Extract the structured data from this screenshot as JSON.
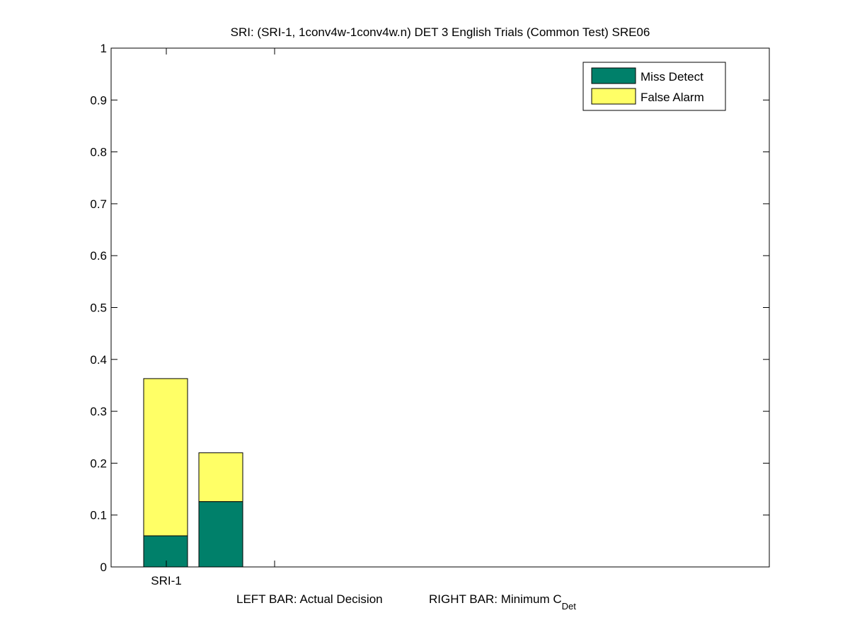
{
  "chart_data": {
    "type": "bar",
    "title": "SRI: (SRI-1, 1conv4w-1conv4w.n) DET 3 English Trials (Common Test) SRE06",
    "xlabel": {
      "left_text": "LEFT BAR: Actual Decision",
      "right_text": "RIGHT BAR: Minimum C",
      "right_subscript": "Det"
    },
    "ylabel": "",
    "categories": [
      "SRI-1"
    ],
    "bar_groups": [
      {
        "category": "SRI-1",
        "bars": [
          {
            "label": "Actual Decision",
            "miss_detect": 0.06,
            "false_alarm": 0.303
          },
          {
            "label": "Minimum C Det",
            "miss_detect": 0.126,
            "false_alarm": 0.094
          }
        ]
      }
    ],
    "series": [
      {
        "name": "Miss Detect",
        "color": "#00806a"
      },
      {
        "name": "False Alarm",
        "color": "#ffff66"
      }
    ],
    "ylim": [
      0,
      1
    ],
    "yticks": [
      "0",
      "0.1",
      "0.2",
      "0.3",
      "0.4",
      "0.5",
      "0.6",
      "0.7",
      "0.8",
      "0.9",
      "1"
    ],
    "x_extra_ticks": 1,
    "legend": "top-right",
    "grid": false
  }
}
